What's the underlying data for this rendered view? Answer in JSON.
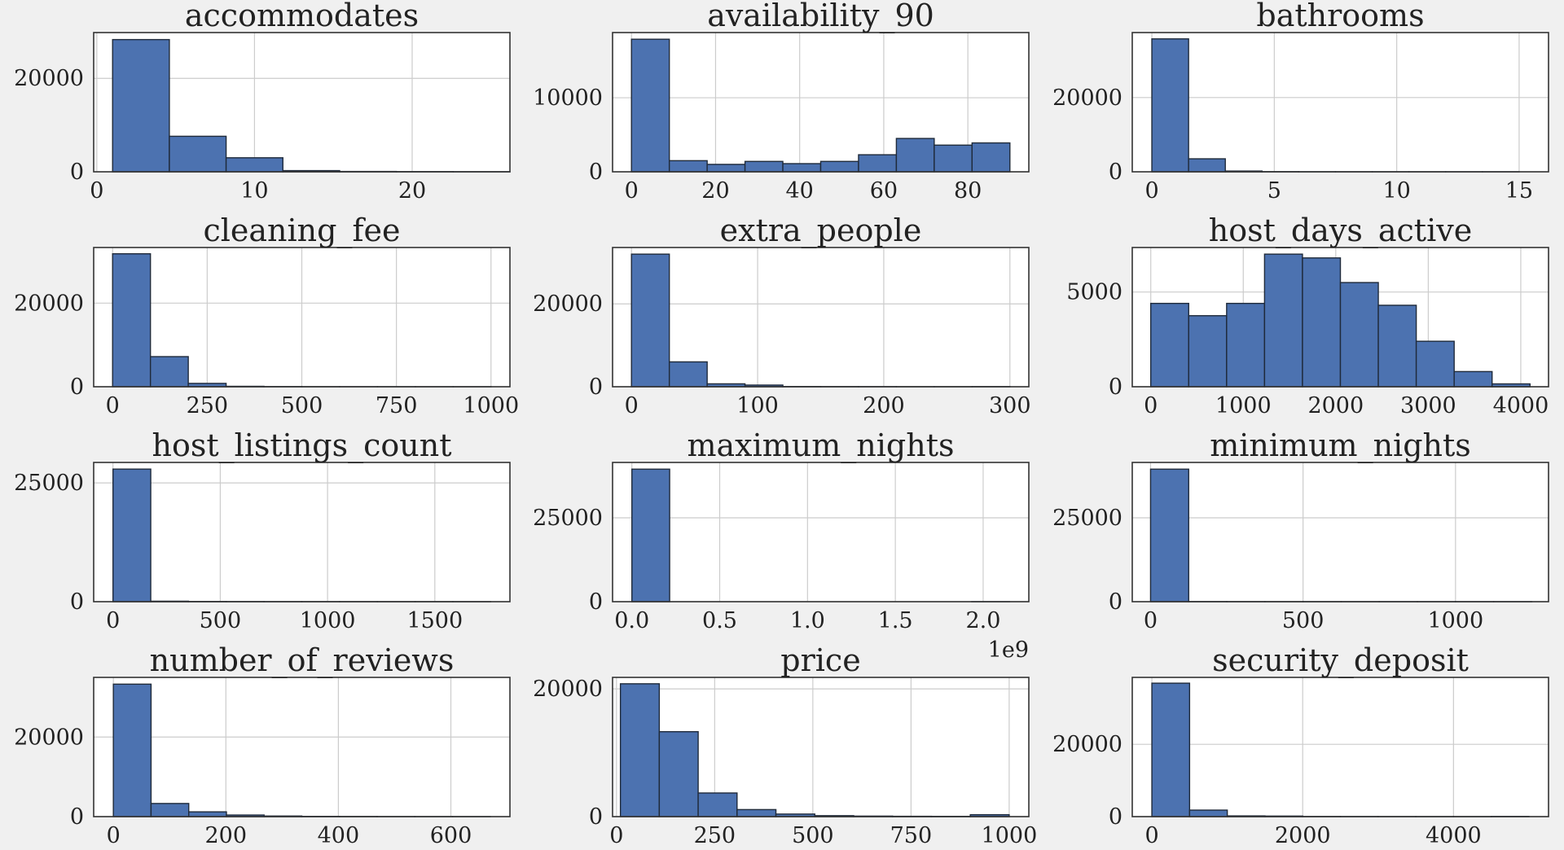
{
  "style": {
    "background": "#f0f0f0",
    "bar_fill": "#4c72b0",
    "bar_edge": "#1f2a3a",
    "grid_color": "#cccccc",
    "axes_edge": "#333333",
    "text_color": "#222222"
  },
  "chart_data": [
    {
      "type": "bar",
      "title": "accommodates",
      "xlim": [
        -0.2,
        26.2
      ],
      "ylim": [
        0,
        29800
      ],
      "bin_edges": [
        1,
        4.6,
        8.2,
        11.8,
        15.4,
        19,
        22.6,
        26.2
      ],
      "values": [
        28300,
        7600,
        3000,
        250,
        70,
        40,
        20
      ],
      "xticks": [
        0,
        10,
        20
      ],
      "xtick_labels": [
        "0",
        "10",
        "20"
      ],
      "yticks": [
        0,
        20000
      ],
      "ytick_labels": [
        "0",
        "20000"
      ],
      "offset_text": ""
    },
    {
      "type": "bar",
      "title": "availability_90",
      "xlim": [
        -4.5,
        94.5
      ],
      "ylim": [
        0,
        18800
      ],
      "bin_edges": [
        0,
        9,
        18,
        27,
        36,
        45,
        54,
        63,
        72,
        81,
        90
      ],
      "values": [
        17900,
        1500,
        1000,
        1400,
        1100,
        1400,
        2300,
        4500,
        3600,
        3900
      ],
      "xticks": [
        0,
        20,
        40,
        60,
        80
      ],
      "xtick_labels": [
        "0",
        "20",
        "40",
        "60",
        "80"
      ],
      "yticks": [
        0,
        10000
      ],
      "ytick_labels": [
        "0",
        "10000"
      ],
      "offset_text": ""
    },
    {
      "type": "bar",
      "title": "bathrooms",
      "xlim": [
        -0.8,
        16.2
      ],
      "ylim": [
        0,
        37500
      ],
      "bin_edges": [
        0,
        1.5,
        3,
        4.5,
        6,
        7.5,
        9,
        10.5,
        12,
        13.5,
        15
      ],
      "values": [
        35800,
        3500,
        200,
        40,
        10,
        5,
        3,
        2,
        1,
        1
      ],
      "xticks": [
        0,
        5,
        10,
        15
      ],
      "xtick_labels": [
        "0",
        "5",
        "10",
        "15"
      ],
      "yticks": [
        0,
        20000
      ],
      "ytick_labels": [
        "0",
        "20000"
      ],
      "offset_text": ""
    },
    {
      "type": "bar",
      "title": "cleaning_fee",
      "xlim": [
        -50,
        1050
      ],
      "ylim": [
        0,
        33300
      ],
      "bin_edges": [
        0,
        100,
        200,
        300,
        400,
        500,
        600,
        700,
        800,
        900,
        1000
      ],
      "values": [
        31800,
        7200,
        800,
        100,
        30,
        10,
        5,
        3,
        2,
        2
      ],
      "xticks": [
        0,
        250,
        500,
        750,
        1000
      ],
      "xtick_labels": [
        "0",
        "250",
        "500",
        "750",
        "1000"
      ],
      "yticks": [
        0,
        20000
      ],
      "ytick_labels": [
        "0",
        "20000"
      ],
      "offset_text": ""
    },
    {
      "type": "bar",
      "title": "extra_people",
      "xlim": [
        -15,
        315
      ],
      "ylim": [
        0,
        33600
      ],
      "bin_edges": [
        0,
        30,
        60,
        90,
        120,
        150,
        180,
        210,
        240,
        270,
        300
      ],
      "values": [
        32000,
        6000,
        700,
        400,
        50,
        30,
        20,
        10,
        10,
        30
      ],
      "xticks": [
        0,
        100,
        200,
        300
      ],
      "xtick_labels": [
        "0",
        "100",
        "200",
        "300"
      ],
      "yticks": [
        0,
        20000
      ],
      "ytick_labels": [
        "0",
        "20000"
      ],
      "offset_text": ""
    },
    {
      "type": "bar",
      "title": "host_days_active",
      "xlim": [
        -200,
        4300
      ],
      "ylim": [
        0,
        7350
      ],
      "bin_edges": [
        0,
        410,
        820,
        1230,
        1640,
        2050,
        2460,
        2870,
        3280,
        3690,
        4100
      ],
      "values": [
        4400,
        3750,
        4400,
        7000,
        6800,
        5500,
        4300,
        2400,
        800,
        150
      ],
      "xticks": [
        0,
        1000,
        2000,
        3000,
        4000
      ],
      "xtick_labels": [
        "0",
        "1000",
        "2000",
        "3000",
        "4000"
      ],
      "yticks": [
        0,
        5000
      ],
      "ytick_labels": [
        "0",
        "5000"
      ],
      "offset_text": ""
    },
    {
      "type": "bar",
      "title": "host_listings_count",
      "xlim": [
        -90,
        1850
      ],
      "ylim": [
        0,
        29300
      ],
      "bin_edges": [
        0,
        176,
        352,
        528,
        704,
        880,
        1056,
        1232,
        1408,
        1584,
        1760
      ],
      "values": [
        27900,
        100,
        40,
        20,
        10,
        5,
        5,
        3,
        3,
        3
      ],
      "xticks": [
        0,
        500,
        1000,
        1500
      ],
      "xtick_labels": [
        "0",
        "500",
        "1000",
        "1500"
      ],
      "yticks": [
        0,
        25000
      ],
      "ytick_labels": [
        "0",
        "25000"
      ],
      "offset_text": ""
    },
    {
      "type": "bar",
      "title": "maximum_nights",
      "xlim": [
        -0.11,
        2.26
      ],
      "ylim": [
        0,
        41500
      ],
      "bin_edges": [
        0,
        0.215,
        0.43,
        0.645,
        0.86,
        1.075,
        1.29,
        1.505,
        1.72,
        1.935,
        2.15
      ],
      "values": [
        39500,
        0,
        0,
        0,
        0,
        0,
        0,
        0,
        0,
        1
      ],
      "xticks": [
        0,
        0.5,
        1,
        1.5,
        2
      ],
      "xtick_labels": [
        "0.0",
        "0.5",
        "1.0",
        "1.5",
        "2.0"
      ],
      "yticks": [
        0,
        25000
      ],
      "ytick_labels": [
        "0",
        "25000"
      ],
      "offset_text": "1e9"
    },
    {
      "type": "bar",
      "title": "minimum_nights",
      "xlim": [
        -60,
        1305
      ],
      "ylim": [
        0,
        41500
      ],
      "bin_edges": [
        0,
        125,
        250,
        375,
        500,
        625,
        750,
        875,
        1000,
        1125,
        1250
      ],
      "values": [
        39500,
        30,
        10,
        5,
        3,
        2,
        1,
        1,
        1,
        1
      ],
      "xticks": [
        0,
        500,
        1000
      ],
      "xtick_labels": [
        "0",
        "500",
        "1000"
      ],
      "yticks": [
        0,
        25000
      ],
      "ytick_labels": [
        "0",
        "25000"
      ],
      "offset_text": ""
    },
    {
      "type": "bar",
      "title": "number_of_reviews",
      "xlim": [
        -35,
        705
      ],
      "ylim": [
        0,
        35000
      ],
      "bin_edges": [
        0,
        67,
        134,
        201,
        268,
        335,
        402,
        469,
        536,
        603,
        670
      ],
      "values": [
        33300,
        3300,
        1200,
        400,
        150,
        60,
        30,
        10,
        5,
        3
      ],
      "xticks": [
        0,
        200,
        400,
        600
      ],
      "xtick_labels": [
        "0",
        "200",
        "400",
        "600"
      ],
      "yticks": [
        0,
        20000
      ],
      "ytick_labels": [
        "0",
        "20000"
      ],
      "offset_text": ""
    },
    {
      "type": "bar",
      "title": "price",
      "xlim": [
        -10,
        1050
      ],
      "ylim": [
        0,
        21800
      ],
      "bin_edges": [
        10,
        109,
        208,
        307,
        406,
        505,
        604,
        703,
        802,
        901,
        1000
      ],
      "values": [
        20800,
        13300,
        3700,
        1100,
        400,
        150,
        80,
        50,
        40,
        300
      ],
      "xticks": [
        0,
        250,
        500,
        750,
        1000
      ],
      "xtick_labels": [
        "0",
        "250",
        "500",
        "750",
        "1000"
      ],
      "yticks": [
        0,
        20000
      ],
      "ytick_labels": [
        "0",
        "20000"
      ],
      "offset_text": ""
    },
    {
      "type": "bar",
      "title": "security_deposit",
      "xlim": [
        -260,
        5260
      ],
      "ylim": [
        0,
        38500
      ],
      "bin_edges": [
        0,
        500,
        1000,
        1500,
        2000,
        2500,
        3000,
        3500,
        4000,
        4500,
        5000
      ],
      "values": [
        36900,
        1800,
        200,
        150,
        30,
        20,
        10,
        5,
        5,
        50
      ],
      "xticks": [
        0,
        2000,
        4000
      ],
      "xtick_labels": [
        "0",
        "2000",
        "4000"
      ],
      "yticks": [
        0,
        20000
      ],
      "ytick_labels": [
        "0",
        "20000"
      ],
      "offset_text": ""
    }
  ]
}
